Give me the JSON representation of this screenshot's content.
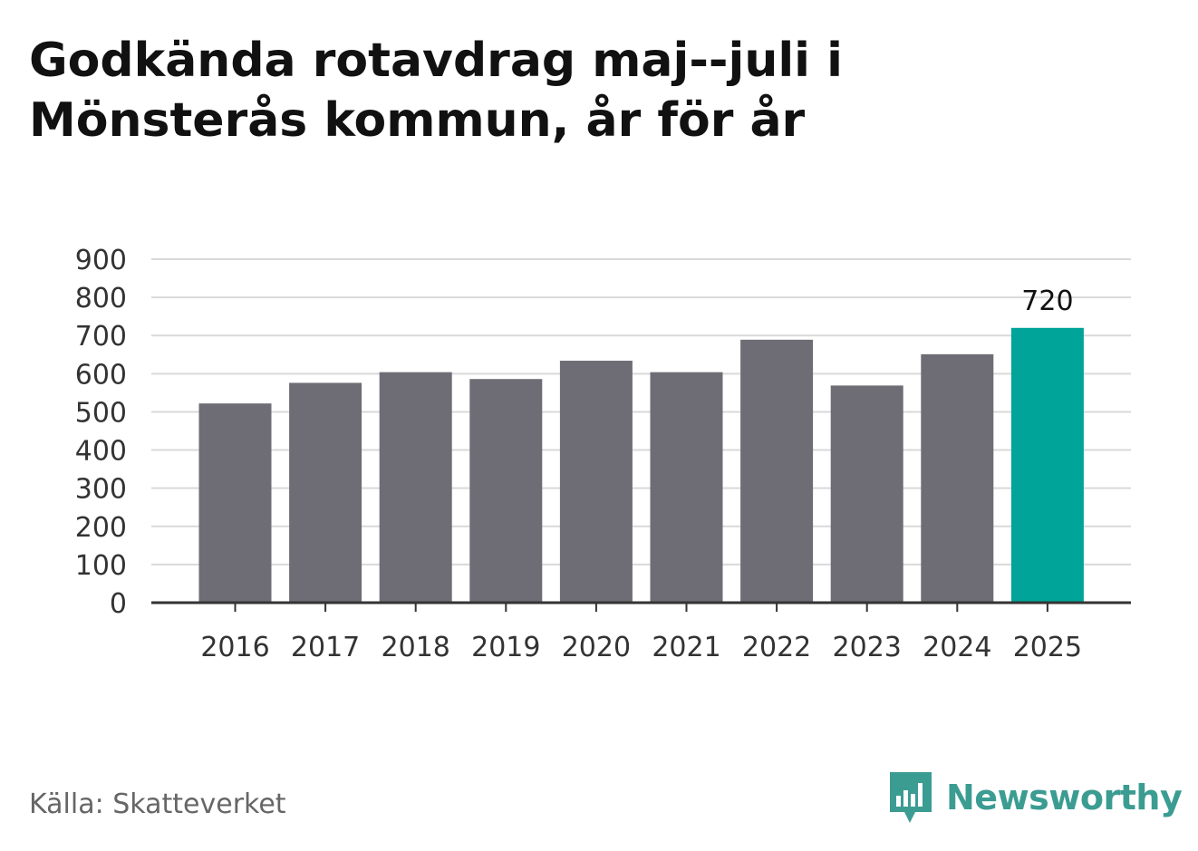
{
  "title": "Godkända rotavdrag maj--juli i Mönsterås kommun, år för år",
  "source": "Källa: Skatteverket",
  "brand": {
    "name": "Newsworthy",
    "icon": "newsworthy-logo-icon",
    "color": "#3b9c92"
  },
  "chart_data": {
    "type": "bar",
    "categories": [
      "2016",
      "2017",
      "2018",
      "2019",
      "2020",
      "2021",
      "2022",
      "2023",
      "2024",
      "2025"
    ],
    "values": [
      522,
      576,
      604,
      586,
      634,
      604,
      689,
      569,
      651,
      720
    ],
    "ylim": [
      0,
      900
    ],
    "yticks": [
      0,
      100,
      200,
      300,
      400,
      500,
      600,
      700,
      800,
      900
    ],
    "grid": true,
    "bar_color": "#6e6d75",
    "highlight_color": "#00a499",
    "highlight_index": 9,
    "data_labels": [
      {
        "index": 9,
        "text": "720"
      }
    ]
  }
}
